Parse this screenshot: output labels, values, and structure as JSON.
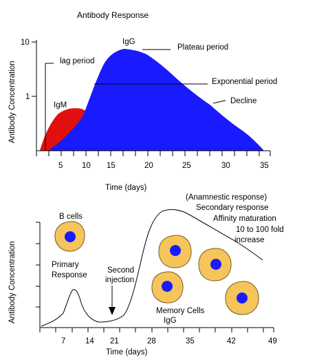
{
  "top_figure": {
    "title": "Antibody Response",
    "ylabel": "Antibody Concentration",
    "xlabel": "Time (days)",
    "y_ticks": [
      "10",
      "1"
    ],
    "x_ticks": [
      "5",
      "10",
      "15",
      "20",
      "25",
      "30",
      "35"
    ],
    "labels": {
      "lag": "lag period",
      "igg": "IgG",
      "plateau": "Plateau period",
      "exponential": "Exponential period",
      "igm": "IgM",
      "decline": "Decline"
    },
    "colors": {
      "igm_fill": "#e01010",
      "igg_fill": "#1a1aff"
    }
  },
  "bottom_figure": {
    "ylabel": "Antibody Concentration",
    "xlabel": "Time (days)",
    "x_ticks": [
      "7",
      "14",
      "21",
      "28",
      "35",
      "42",
      "49"
    ],
    "labels": {
      "b_cells": "B cells",
      "primary_1": "Primary",
      "primary_2": "Response",
      "second_1": "Second",
      "second_2": "injection",
      "anamnestic": "(Anamnestic response)",
      "secondary": "Secondary response",
      "affinity": "Affinity maturation",
      "fold_1": "10 to 100 fold",
      "fold_2": "increase",
      "memory": "Memory Cells",
      "igg": "IgG"
    },
    "colors": {
      "cell_fill": "#f5c45a",
      "cell_border": "#7a5a20",
      "nucleus": "#1a1aff"
    }
  }
}
